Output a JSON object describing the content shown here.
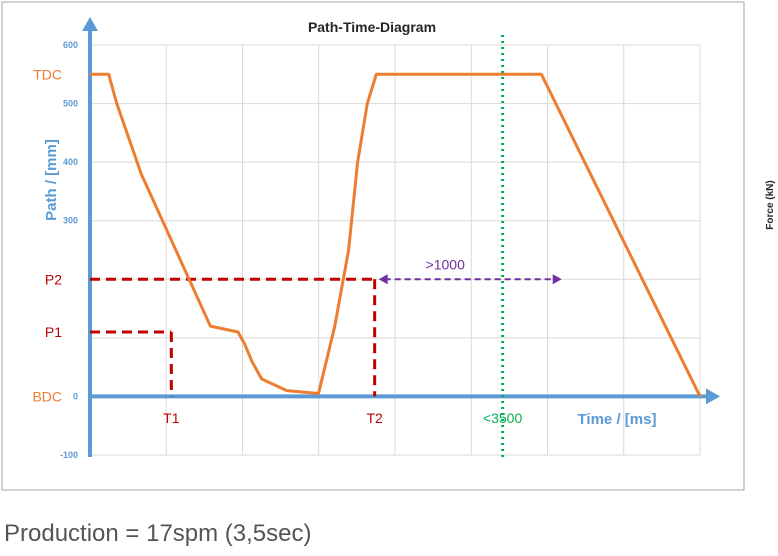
{
  "chart_data": {
    "type": "line",
    "title": "Path-Time-Diagram",
    "ylabel": "Path / [mm]",
    "xlabel": "Time / [ms]",
    "secondary_ylabel": "Force (kN)",
    "ylim": [
      -100,
      600
    ],
    "yticks": [
      600,
      500,
      400,
      300,
      200,
      100,
      0,
      -100
    ],
    "ytick_labels": [
      "600",
      "500",
      "400",
      "300",
      "",
      "",
      "0",
      "-100"
    ],
    "grid": true,
    "series": [
      {
        "x": [
          0,
          40,
          150,
          230,
          330,
          630,
          1480,
          1820,
          1900,
          1990,
          2110,
          2420,
          2810,
          3010,
          3180,
          3290,
          3410,
          3520,
          3840,
          3890,
          5250,
          5550,
          7500
        ],
        "y": [
          550,
          550,
          550,
          550,
          500,
          380,
          120,
          110,
          90,
          60,
          30,
          10,
          5,
          120,
          250,
          400,
          500,
          550,
          550,
          550,
          550,
          550,
          0
        ],
        "color": "#ed7d31"
      }
    ],
    "series_points_note": "",
    "level_labels": [
      {
        "text": "TDC",
        "y": 550
      },
      {
        "text": "P2",
        "y": 200
      },
      {
        "text": "P1",
        "y": 110
      },
      {
        "text": "BDC",
        "y": 0
      }
    ],
    "time_labels": [
      {
        "text": "T1",
        "x": 1000
      },
      {
        "text": "T2",
        "x": 3500
      },
      {
        "text": "<3500",
        "x": 4950
      }
    ],
    "range_label": ">1000",
    "colors": {
      "curve": "#ed7d31",
      "axis": "#5b9bd5",
      "guide": "#c00000",
      "range_arrow": "#7030a0",
      "cycle_line": "#00b050",
      "level_text": "#ed7d31",
      "axis_text": "#5b9bd5",
      "time_text": "#c00000",
      "cycle_text": "#00b050"
    }
  },
  "caption": "Production = 17spm (3,5sec)"
}
